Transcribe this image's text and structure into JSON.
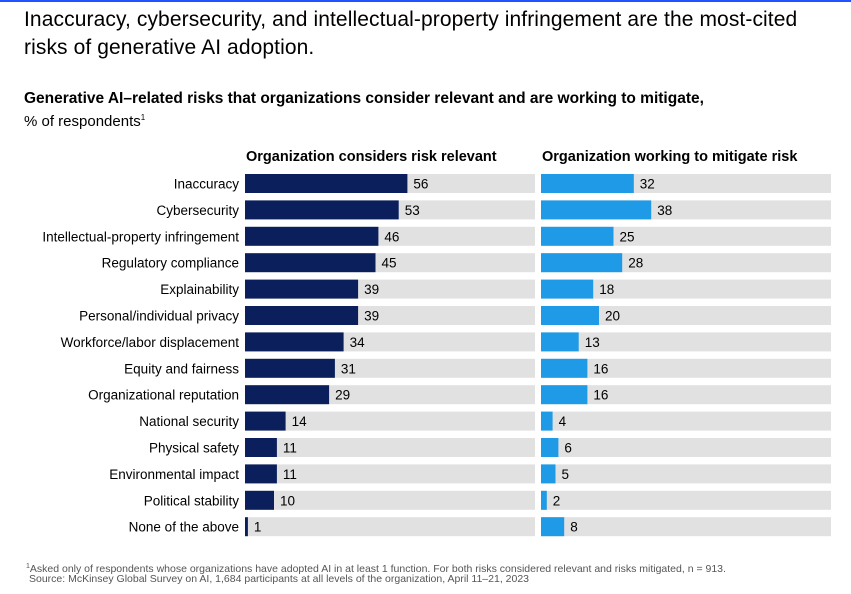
{
  "headline": "Inaccuracy, cybersecurity, and intellectual-property infringement are the most-cited risks of generative AI adoption.",
  "subtitle": "Generative AI–related risks that organizations consider relevant and are working to mitigate,",
  "unit": "% of respondents",
  "unit_footnote_mark": "1",
  "footnote_mark": "1",
  "footnote": "Asked only of respondents whose organizations have adopted AI in at least 1 function. For both risks considered relevant and risks mitigated, n = 913.",
  "source": "Source: McKinsey Global Survey on AI, 1,684 participants at all levels of the organization, April 11–21, 2023",
  "colors": {
    "relevant": "#0a1f5c",
    "mitigate": "#1e9ae6",
    "track": "#e1e1e1",
    "accent_rule": "#2251ff"
  },
  "chart_data": {
    "type": "bar",
    "orientation": "horizontal",
    "title": "Generative AI–related risks that organizations consider relevant and are working to mitigate",
    "xlabel": "% of respondents",
    "xlim": [
      0,
      100
    ],
    "grid": false,
    "categories": [
      "Inaccuracy",
      "Cybersecurity",
      "Intellectual-property infringement",
      "Regulatory compliance",
      "Explainability",
      "Personal/individual privacy",
      "Workforce/labor displacement",
      "Equity and fairness",
      "Organizational reputation",
      "National security",
      "Physical safety",
      "Environmental impact",
      "Political stability",
      "None of the above"
    ],
    "series": [
      {
        "name": "Organization considers risk relevant",
        "values": [
          56,
          53,
          46,
          45,
          39,
          39,
          34,
          31,
          29,
          14,
          11,
          11,
          10,
          1
        ]
      },
      {
        "name": "Organization working to mitigate risk",
        "values": [
          32,
          38,
          25,
          28,
          18,
          20,
          13,
          16,
          16,
          4,
          6,
          5,
          2,
          8
        ]
      }
    ]
  }
}
